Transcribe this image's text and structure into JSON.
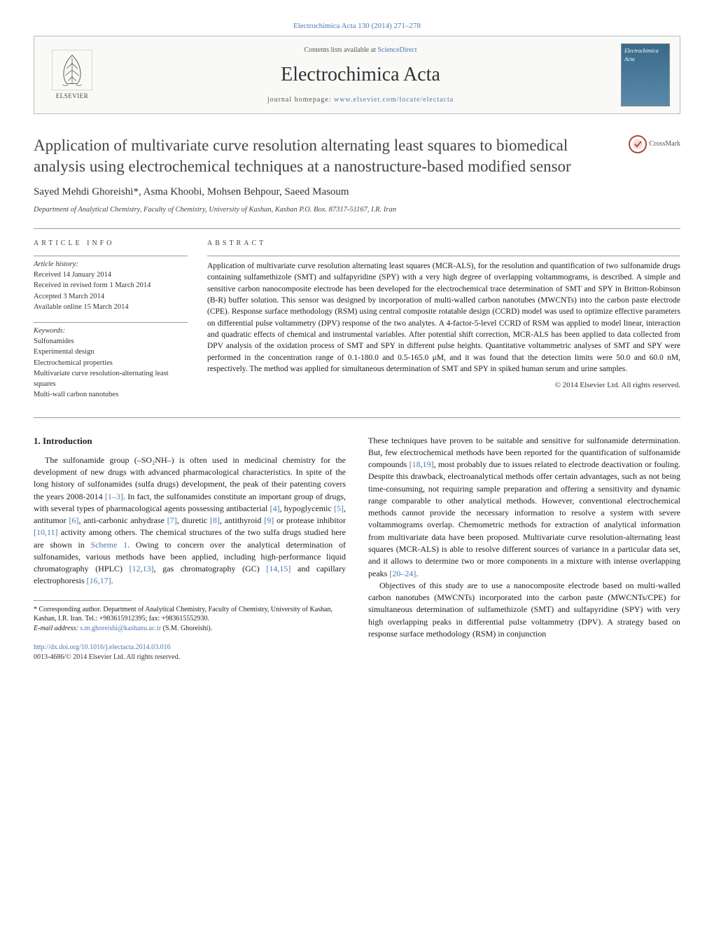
{
  "journal_ref": {
    "text": "Electrochimica Acta 130 (2014) 271–278",
    "link_color": "#4a7ab0"
  },
  "header": {
    "contents_text": "Contents lists available at ",
    "contents_link": "ScienceDirect",
    "journal_name": "Electrochimica Acta",
    "homepage_label": "journal homepage: ",
    "homepage_url": "www.elsevier.com/locate/electacta",
    "publisher_name": "ELSEVIER",
    "cover_title": "Electrochimica Acta"
  },
  "crossmark_label": "CrossMark",
  "title": "Application of multivariate curve resolution alternating least squares to biomedical analysis using electrochemical techniques at a nanostructure-based modified sensor",
  "authors": "Sayed Mehdi Ghoreishi*, Asma Khoobi, Mohsen Behpour, Saeed Masoum",
  "affiliation": "Department of Analytical Chemistry, Faculty of Chemistry, University of Kashan, Kashan P.O. Box. 87317-51167, I.R. Iran",
  "article_info": {
    "label": "ARTICLE INFO",
    "history_label": "Article history:",
    "received": "Received 14 January 2014",
    "revised": "Received in revised form 1 March 2014",
    "accepted": "Accepted 3 March 2014",
    "online": "Available online 15 March 2014",
    "keywords_label": "Keywords:",
    "keywords": [
      "Sulfonamides",
      "Experimental design",
      "Electrochemical properties",
      "Multivariate curve resolution-alternating least squares",
      "Multi-wall carbon nanotubes"
    ]
  },
  "abstract": {
    "label": "ABSTRACT",
    "text": "Application of multivariate curve resolution alternating least squares (MCR-ALS), for the resolution and quantification of two sulfonamide drugs containing sulfamethizole (SMT) and sulfapyridine (SPY) with a very high degree of overlapping voltammograms, is described. A simple and sensitive carbon nanocomposite electrode has been developed for the electrochemical trace determination of SMT and SPY in Britton-Robinson (B-R) buffer solution. This sensor was designed by incorporation of multi-walled carbon nanotubes (MWCNTs) into the carbon paste electrode (CPE). Response surface methodology (RSM) using central composite rotatable design (CCRD) model was used to optimize effective parameters on differential pulse voltammetry (DPV) response of the two analytes. A 4-factor-5-level CCRD of RSM was applied to model linear, interaction and quadratic effects of chemical and instrumental variables. After potential shift correction, MCR-ALS has been applied to data collected from DPV analysis of the oxidation process of SMT and SPY in different pulse heights. Quantitative voltammetric analyses of SMT and SPY were performed in the concentration range of 0.1-180.0 and 0.5-165.0 μM, and it was found that the detection limits were 50.0 and 60.0 nM, respectively. The method was applied for simultaneous determination of SMT and SPY in spiked human serum and urine samples.",
    "copyright": "© 2014 Elsevier Ltd. All rights reserved."
  },
  "introduction": {
    "heading": "1. Introduction",
    "col1_html": "The sulfonamide group (–SO₂NH–) is often used in medicinal chemistry for the development of new drugs with advanced pharmacological characteristics. In spite of the long history of sulfonamides (sulfa drugs) development, the peak of their patenting covers the years 2008-2014 <a href='#'>[1–3]</a>. In fact, the sulfonamides constitute an important group of drugs, with several types of pharmacological agents possessing antibacterial <a href='#'>[4]</a>, hypoglycemic <a href='#'>[5]</a>, antitumor <a href='#'>[6]</a>, anti-carbonic anhydrase <a href='#'>[7]</a>, diuretic <a href='#'>[8]</a>, antithyroid <a href='#'>[9]</a> or protease inhibitor <a href='#'>[10,11]</a> activity among others. The chemical structures of the two sulfa drugs studied here are shown in <a href='#'>Scheme 1</a>. Owing to concern over the analytical determination of sulfonamides, various methods have been applied, including high-performance liquid chromatography (HPLC) <a href='#'>[12,13]</a>, gas chromatography (GC) <a href='#'>[14,15]</a> and capillary electrophoresis <a href='#'>[16,17]</a>.",
    "col2_p1_html": "These techniques have proven to be suitable and sensitive for sulfonamide determination. But, few electrochemical methods have been reported for the quantification of sulfonamide compounds <a href='#'>[18,19]</a>, most probably due to issues related to electrode deactivation or fouling. Despite this drawback, electroanalytical methods offer certain advantages, such as not being time-consuming, not requiring sample preparation and offering a sensitivity and dynamic range comparable to other analytical methods. However, conventional electrochemical methods cannot provide the necessary information to resolve a system with severe voltammograms overlap. Chemometric methods for extraction of analytical information from multivariate data have been proposed. Multivariate curve resolution-alternating least squares (MCR-ALS) is able to resolve different sources of variance in a particular data set, and it allows to determine two or more components in a mixture with intense overlapping peaks <a href='#'>[20–24]</a>.",
    "col2_p2_html": "Objectives of this study are to use a nanocomposite electrode based on multi-walled carbon nanotubes (MWCNTs) incorporated into the carbon paste (MWCNTs/CPE) for simultaneous determination of sulfamethizole (SMT) and sulfapyridine (SPY) with very high overlapping peaks in differential pulse voltammetry (DPV). A strategy based on response surface methodology (RSM) in conjunction"
  },
  "footnote": {
    "corr_label": "* Corresponding author. Department of Analytical Chemistry, Faculty of Chemistry, University of Kashan, Kashan, I.R. Iran. Tel.: +983615912395; fax: +983615552930.",
    "email_label": "E-mail address: ",
    "email": "s.m.ghoreishi@kashanu.ac.ir",
    "email_attr": " (S.M. Ghoreishi)."
  },
  "doi": {
    "url": "http://dx.doi.org/10.1016/j.electacta.2014.03.016",
    "issn_line": "0013-4686/© 2014 Elsevier Ltd. All rights reserved."
  },
  "colors": {
    "link": "#4a7ab0",
    "text": "#1a1a1a",
    "border": "#999999",
    "background": "#ffffff"
  }
}
